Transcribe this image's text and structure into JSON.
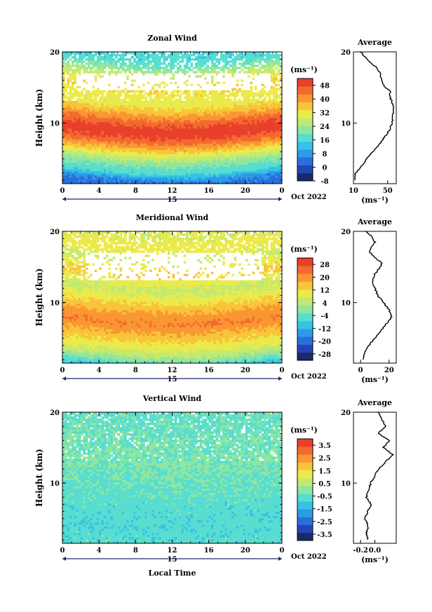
{
  "chart_data": [
    {
      "type": "heatmap",
      "title": "Zonal Wind",
      "ylabel": "Height (km)",
      "xlabel": "",
      "xticks": [
        "0",
        "4",
        "8",
        "12",
        "16",
        "20",
        "0"
      ],
      "yticks": [
        "20",
        "10"
      ],
      "xlim": [
        0,
        24
      ],
      "ylim": [
        1.5,
        20
      ],
      "date_label": "15",
      "month_label": "Oct 2022",
      "colorbar": {
        "unit": "(ms⁻¹)",
        "ticks": [
          "48",
          "40",
          "32",
          "24",
          "16",
          "8",
          "0",
          "-8"
        ],
        "range": [
          -8,
          52
        ],
        "step": 4
      },
      "profile": {
        "title": "Average",
        "xlabel": "(ms⁻¹)",
        "xticks": [
          "10",
          "50"
        ],
        "xlim": [
          10,
          60
        ],
        "yticks": [
          "20",
          "10"
        ],
        "points": [
          [
            12,
            2
          ],
          [
            12,
            2.8
          ],
          [
            14,
            3.2
          ],
          [
            20,
            4
          ],
          [
            25,
            5
          ],
          [
            33,
            6
          ],
          [
            40,
            7
          ],
          [
            46,
            8
          ],
          [
            52,
            9
          ],
          [
            55,
            10
          ],
          [
            56,
            11
          ],
          [
            57,
            12
          ],
          [
            55,
            13
          ],
          [
            52,
            13.8
          ],
          [
            53,
            14.5
          ],
          [
            47,
            15
          ],
          [
            43,
            16
          ],
          [
            41,
            17
          ],
          [
            37,
            17.8
          ],
          [
            30,
            18.5
          ],
          [
            24,
            19.2
          ],
          [
            18,
            20
          ]
        ]
      },
      "field": {
        "profile": [
          [
            2,
            4
          ],
          [
            3,
            6
          ],
          [
            4,
            16
          ],
          [
            5,
            20
          ],
          [
            6,
            26
          ],
          [
            7,
            34
          ],
          [
            8,
            42
          ],
          [
            9,
            48
          ],
          [
            10,
            50
          ],
          [
            11,
            46
          ],
          [
            12,
            40
          ],
          [
            13,
            34
          ],
          [
            14,
            30
          ],
          [
            15,
            32
          ],
          [
            16,
            34
          ],
          [
            17,
            30
          ],
          [
            18,
            26
          ],
          [
            19,
            20
          ],
          [
            20,
            16
          ]
        ],
        "dip_mid": 6.5,
        "blank": [
          [
            14.5,
            17,
            0.06,
            0.94
          ]
        ]
      }
    },
    {
      "type": "heatmap",
      "title": "Meridional Wind",
      "ylabel": "Height (km)",
      "xlabel": "",
      "xticks": [
        "0",
        "4",
        "8",
        "12",
        "16",
        "20",
        "0"
      ],
      "yticks": [
        "20",
        "10"
      ],
      "xlim": [
        0,
        24
      ],
      "ylim": [
        1.5,
        20
      ],
      "date_label": "15",
      "month_label": "Oct 2022",
      "colorbar": {
        "unit": "(ms⁻¹)",
        "ticks": [
          "28",
          "20",
          "12",
          "4",
          "-4",
          "-12",
          "-20",
          "-28"
        ],
        "range": [
          -32,
          32
        ],
        "step": 4
      },
      "profile": {
        "title": "Average",
        "xlabel": "(ms⁻¹)",
        "xticks": [
          "0",
          "20"
        ],
        "xlim": [
          -5,
          25
        ],
        "yticks": [
          "20",
          "10"
        ],
        "points": [
          [
            2,
            2
          ],
          [
            3,
            3
          ],
          [
            6,
            4
          ],
          [
            10,
            5
          ],
          [
            14,
            6
          ],
          [
            18,
            7
          ],
          [
            22,
            8
          ],
          [
            20,
            9
          ],
          [
            16,
            10
          ],
          [
            12,
            11
          ],
          [
            10,
            12
          ],
          [
            8,
            13
          ],
          [
            10,
            14
          ],
          [
            14,
            15
          ],
          [
            15,
            15.6
          ],
          [
            12,
            16
          ],
          [
            9,
            16.5
          ],
          [
            6,
            17.2
          ],
          [
            8,
            17.8
          ],
          [
            10,
            18.5
          ],
          [
            8,
            19.2
          ],
          [
            4,
            20
          ]
        ]
      },
      "field": {
        "profile": [
          [
            2,
            -8
          ],
          [
            3,
            0
          ],
          [
            4,
            6
          ],
          [
            5,
            10
          ],
          [
            6,
            14
          ],
          [
            7,
            18
          ],
          [
            8,
            22
          ],
          [
            9,
            20
          ],
          [
            10,
            16
          ],
          [
            11,
            12
          ],
          [
            12,
            8
          ],
          [
            13,
            6
          ],
          [
            14,
            10
          ],
          [
            15,
            14
          ],
          [
            16,
            10
          ],
          [
            17,
            6
          ],
          [
            18,
            8
          ],
          [
            19,
            10
          ],
          [
            20,
            8
          ]
        ],
        "dip_mid": 6.5,
        "blank": [
          [
            13,
            17,
            0.1,
            0.9
          ]
        ]
      }
    },
    {
      "type": "heatmap",
      "title": "Vertical Wind",
      "ylabel": "Height (km)",
      "xlabel": "Local Time",
      "xticks": [
        "0",
        "4",
        "8",
        "12",
        "16",
        "20",
        "0"
      ],
      "yticks": [
        "20",
        "10"
      ],
      "xlim": [
        0,
        24
      ],
      "ylim": [
        1.5,
        20
      ],
      "date_label": "15",
      "month_label": "Oct 2022",
      "colorbar": {
        "unit": "(ms⁻¹)",
        "ticks": [
          "3.5",
          "2.5",
          "1.5",
          "0.5",
          "-0.5",
          "-1.5",
          "-2.5",
          "-3.5"
        ],
        "range": [
          -4,
          4
        ],
        "step": 0.5
      },
      "profile": {
        "title": "Average",
        "xlabel": "(ms⁻¹)",
        "xticks": [
          "-0.2",
          "0.0"
        ],
        "xlim": [
          -0.3,
          0.3
        ],
        "yticks": [
          "20",
          "10"
        ],
        "points": [
          [
            -0.1,
            2
          ],
          [
            -0.12,
            3
          ],
          [
            -0.09,
            4
          ],
          [
            -0.14,
            5
          ],
          [
            -0.1,
            6
          ],
          [
            -0.05,
            7
          ],
          [
            -0.12,
            8
          ],
          [
            -0.08,
            9
          ],
          [
            -0.06,
            10
          ],
          [
            0,
            11
          ],
          [
            0.05,
            12
          ],
          [
            0.15,
            13
          ],
          [
            0.25,
            14
          ],
          [
            0.12,
            15
          ],
          [
            0.2,
            16
          ],
          [
            0.05,
            17
          ],
          [
            0.15,
            18
          ],
          [
            0.1,
            19
          ],
          [
            0.05,
            20
          ]
        ]
      },
      "field": {
        "profile": [
          [
            2,
            -0.6
          ],
          [
            5,
            -0.7
          ],
          [
            8,
            -0.6
          ],
          [
            11,
            -0.4
          ],
          [
            14,
            -0.2
          ],
          [
            17,
            -0.3
          ],
          [
            20,
            -0.5
          ]
        ],
        "dip_mid": 0,
        "blank": []
      }
    }
  ],
  "palette": [
    "#1b2a6b",
    "#2446b4",
    "#2a6fdc",
    "#2d9be6",
    "#35c2e6",
    "#58ddd0",
    "#8fe6a0",
    "#c3ea70",
    "#ecea4a",
    "#f9c43a",
    "#f99733",
    "#f36a2e",
    "#e8402b"
  ]
}
